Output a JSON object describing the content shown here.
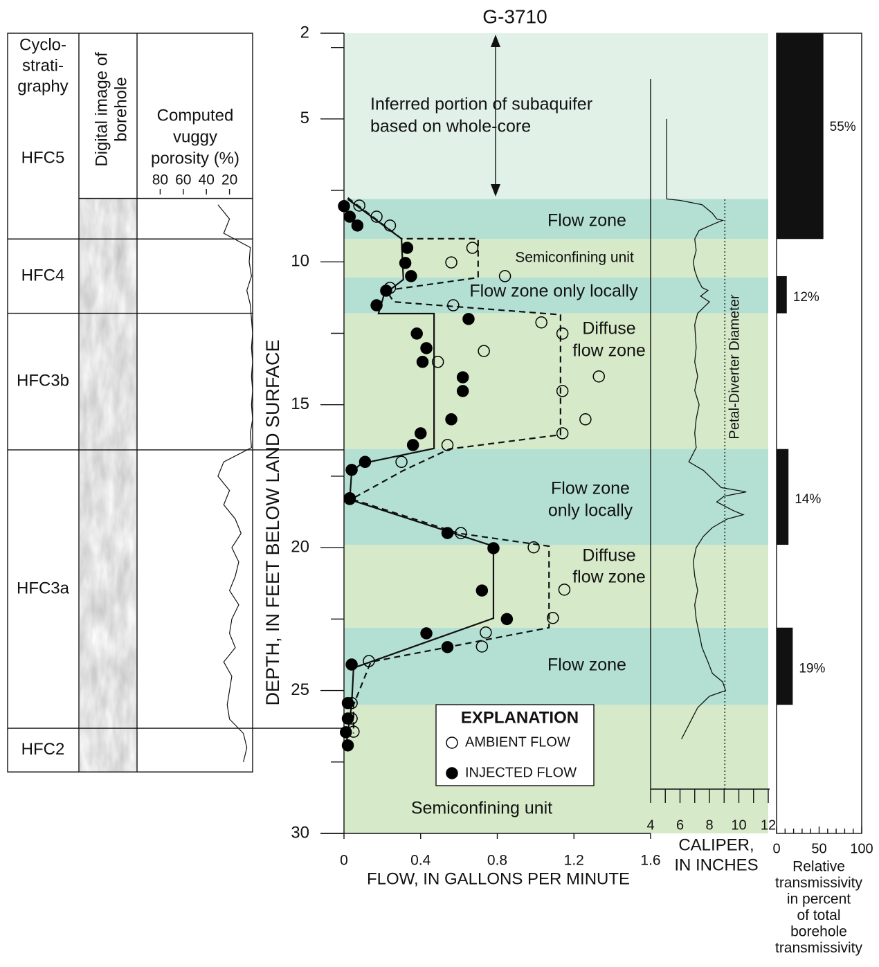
{
  "chart_data": [
    {
      "type": "scatter",
      "title": "G-3710",
      "y_label": "DEPTH, IN FEET BELOW LAND SURFACE",
      "x_label": "FLOW, IN GALLONS PER MINUTE",
      "ylim": [
        2,
        30
      ],
      "yticks": [
        2,
        5,
        10,
        15,
        20,
        25,
        30
      ],
      "yminorticks": [
        2.5,
        7.5,
        12.5,
        17.5,
        22.5,
        27.5
      ],
      "xlim": [
        0,
        1.6
      ],
      "xticks": [
        0,
        0.4,
        0.8,
        1.2,
        1.6
      ],
      "explanation_title": "EXPLANATION",
      "zones": [
        {
          "top": 2,
          "bottom": 7.8,
          "color": "#e1f1e7",
          "label": [
            "Inferred portion of subaquifer",
            "based on whole-core"
          ]
        },
        {
          "top": 7.8,
          "bottom": 9.2,
          "color": "#b4e0d4",
          "label": [
            "Flow zone"
          ]
        },
        {
          "top": 9.2,
          "bottom": 10.55,
          "color": "#d6e9c8",
          "label": [
            "Semiconfining unit"
          ]
        },
        {
          "top": 10.55,
          "bottom": 11.8,
          "color": "#b4e0d4",
          "label": [
            "Flow zone only locally"
          ]
        },
        {
          "top": 11.8,
          "bottom": 16.55,
          "color": "#d6e9c8",
          "label": [
            "Diffuse",
            "flow zone"
          ]
        },
        {
          "top": 16.55,
          "bottom": 19.9,
          "color": "#b4e0d4",
          "label": [
            "Flow zone",
            "only locally"
          ]
        },
        {
          "top": 19.9,
          "bottom": 22.8,
          "color": "#d6e9c8",
          "label": [
            "Diffuse",
            "flow zone"
          ]
        },
        {
          "top": 22.8,
          "bottom": 25.5,
          "color": "#b4e0d4",
          "label": [
            "Flow zone"
          ]
        },
        {
          "top": 25.5,
          "bottom": 30,
          "color": "#d6e9c8",
          "label": [
            "Semiconfining unit"
          ]
        }
      ],
      "series": [
        {
          "name": "AMBIENT FLOW",
          "color": "#000000",
          "marker": "open",
          "values": [
            0.08,
            0.17,
            0.24,
            0.67,
            0.56,
            0.84,
            0.24,
            0.57,
            1.03,
            1.14,
            0.73,
            0.49,
            1.33,
            1.14,
            1.26,
            1.14,
            0.54,
            0.3,
            0.03,
            0.61,
            0.99,
            1.15,
            1.09,
            0.74,
            0.72,
            0.13,
            0.04,
            0.04,
            0.05
          ],
          "depth": [
            8.03,
            8.42,
            8.73,
            9.51,
            10.02,
            10.5,
            10.91,
            11.52,
            12.12,
            12.51,
            13.12,
            13.5,
            14.01,
            14.52,
            15.51,
            16.0,
            16.41,
            17.0,
            18.3,
            19.49,
            19.99,
            21.47,
            22.46,
            22.97,
            23.46,
            23.97,
            25.44,
            25.98,
            26.44
          ]
        },
        {
          "name": "INJECTED FLOW",
          "color": "#000000",
          "marker": "filled",
          "values": [
            0,
            0.03,
            0.07,
            0.33,
            0.32,
            0.35,
            0.22,
            0.17,
            0.65,
            0.38,
            0.43,
            0.41,
            0.62,
            0.62,
            0.56,
            0.4,
            0.36,
            0.11,
            0.04,
            0.03,
            0.54,
            0.78,
            0.72,
            0.85,
            0.43,
            0.54,
            0.04,
            0.02,
            0.02,
            0.01,
            0.02
          ],
          "depth": [
            8.05,
            8.42,
            8.73,
            9.51,
            10.04,
            10.5,
            11.01,
            11.52,
            12.0,
            12.51,
            13.02,
            13.5,
            14.04,
            14.52,
            15.51,
            16.0,
            16.41,
            17.0,
            17.28,
            18.27,
            19.49,
            20.02,
            21.5,
            22.5,
            23.0,
            23.48,
            24.09,
            25.44,
            25.98,
            26.46,
            26.92
          ]
        }
      ],
      "lines": [
        {
          "style": "solid",
          "values": [
            0.02,
            0.3,
            0.31,
            0.21,
            0.18,
            0.47,
            0.47,
            0.09,
            0.04,
            0.03,
            0.78,
            0.78,
            0.05,
            0.04,
            0.01
          ],
          "depth": [
            7.81,
            9.19,
            10.62,
            11.13,
            11.81,
            11.81,
            16.53,
            17.06,
            17.35,
            18.32,
            19.95,
            22.47,
            24.21,
            25.49,
            26.99
          ]
        },
        {
          "style": "dashed",
          "values": [
            0.02,
            0.23,
            0.3,
            0.7,
            0.7,
            0.22,
            0.26,
            1.13,
            1.13,
            0.55,
            0.31,
            0.04,
            0.6,
            1.07,
            1.07,
            0.14,
            0.05,
            0.05
          ],
          "depth": [
            7.76,
            8.83,
            9.19,
            9.19,
            10.55,
            11.0,
            11.4,
            11.85,
            16.05,
            16.55,
            17.3,
            18.3,
            19.5,
            19.95,
            22.8,
            24.0,
            25.5,
            26.5
          ]
        }
      ]
    },
    {
      "type": "line",
      "x_label": [
        "CALIPER,",
        "IN INCHES"
      ],
      "xlim": [
        4,
        12
      ],
      "xticks": [
        4,
        6,
        8,
        10,
        12
      ],
      "xminorticks": [
        5,
        7,
        9,
        11
      ],
      "reference_label": "Petal-Diverter Diameter",
      "reference_value": 9.05,
      "color": "#111111",
      "values": [
        5.1,
        5.1,
        6.0,
        7.5,
        8.2,
        8.5,
        8.9,
        8.4,
        7.3,
        7.0,
        7.1,
        6.9,
        7.0,
        7.2,
        7.5,
        7.9,
        7.4,
        8.0,
        7.6,
        7.2,
        7.0,
        7.1,
        7.0,
        7.2,
        7.0,
        7.3,
        7.1,
        7.0,
        7.1,
        6.6,
        7.6,
        8.2,
        8.8,
        10.5,
        9.0,
        8.5,
        9.6,
        10.3,
        9.2,
        8.2,
        7.6,
        7.1,
        6.9,
        7.0,
        7.2,
        7.0,
        7.1,
        7.3,
        7.5,
        7.9,
        8.2,
        8.9,
        9.1,
        8.0,
        7.2,
        6.8,
        6.5,
        6.1
      ],
      "depth": [
        5.0,
        7.8,
        7.85,
        8.0,
        8.3,
        8.5,
        8.55,
        8.65,
        8.9,
        9.2,
        9.6,
        10.0,
        10.3,
        10.6,
        10.9,
        11.0,
        11.2,
        11.4,
        11.6,
        11.8,
        12.2,
        13.0,
        13.5,
        14.0,
        14.5,
        15.0,
        15.5,
        16.0,
        16.5,
        17.0,
        17.3,
        17.6,
        17.9,
        18.05,
        18.2,
        18.4,
        18.7,
        18.85,
        19.0,
        19.3,
        19.6,
        20.0,
        20.5,
        21.0,
        21.5,
        22.0,
        22.5,
        23.0,
        23.5,
        24.0,
        24.4,
        24.7,
        25.0,
        25.2,
        25.6,
        26.0,
        26.3,
        26.7
      ]
    },
    {
      "type": "bar",
      "x_label": [
        "Relative",
        "transmissivity",
        "in percent",
        "of total",
        "borehole",
        "transmissivity"
      ],
      "xlim": [
        0,
        100
      ],
      "xticks": [
        0,
        50,
        100
      ],
      "xminorticks": [
        10,
        20,
        30,
        40,
        60,
        70,
        80,
        90
      ],
      "color": "#111111",
      "values": [
        55,
        12,
        14,
        19
      ],
      "value_labels": [
        "55%",
        "12%",
        "14%",
        "19%"
      ],
      "depth_ranges": [
        [
          2,
          9.2
        ],
        [
          10.5,
          11.8
        ],
        [
          16.55,
          19.9
        ],
        [
          22.8,
          25.5
        ]
      ]
    },
    {
      "type": "line",
      "title": [
        "Computed",
        "vuggy",
        "porosity (%)"
      ],
      "xlim": [
        100,
        0
      ],
      "xticks": [
        80,
        60,
        40,
        20
      ],
      "color": "#111111",
      "values": [
        30,
        20,
        25,
        2,
        3,
        1,
        5,
        2,
        1,
        0,
        1,
        0,
        1,
        0,
        1,
        0,
        2,
        1,
        25,
        30,
        20,
        25,
        15,
        10,
        18,
        12,
        15,
        20,
        12,
        18,
        20,
        15,
        25,
        18,
        20,
        22,
        20,
        8,
        5,
        8
      ],
      "depth": [
        8,
        8.5,
        9,
        9.5,
        10,
        10.5,
        11,
        11.5,
        12,
        12.5,
        13,
        13.5,
        14,
        14.5,
        15,
        15.5,
        16,
        16.5,
        17,
        17.5,
        18,
        18.5,
        19,
        19.5,
        20,
        20.5,
        21,
        21.5,
        22,
        22.5,
        23,
        23.5,
        24,
        24.5,
        25,
        25.5,
        26,
        26.5,
        27,
        27.5
      ]
    }
  ],
  "stratigraphy": {
    "header": [
      "Cyclo-",
      "strati-",
      "graphy"
    ],
    "image_header": [
      "Digital image of",
      "borehole"
    ],
    "units": [
      {
        "label": "HFC5",
        "bottom": 9.2
      },
      {
        "label": "HFC4",
        "bottom": 11.8
      },
      {
        "label": "HFC3b",
        "bottom": 16.58
      },
      {
        "label": "HFC3a",
        "bottom": 26.32
      },
      {
        "label": "HFC2",
        "bottom": 27.85
      }
    ],
    "log_top": 7.78
  }
}
